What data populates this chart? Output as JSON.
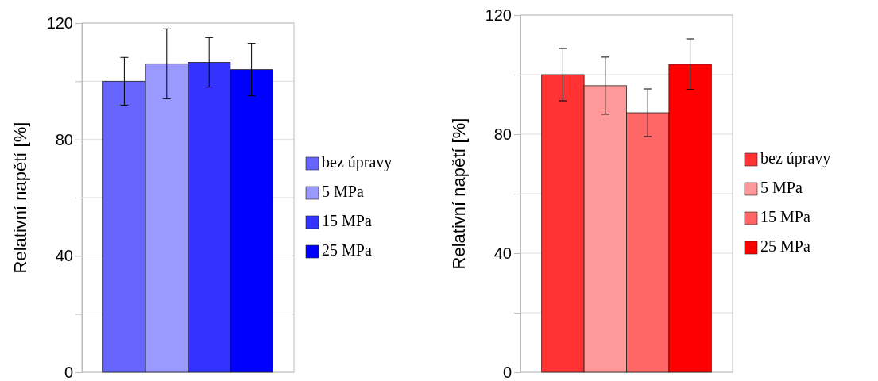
{
  "chart_data": [
    {
      "type": "bar",
      "ylabel": "Relativní napětí [%]",
      "categories": [
        null
      ],
      "ylim": [
        0,
        120
      ],
      "yticks": [
        0,
        {
          "value": 20,
          "label": null
        },
        40,
        {
          "value": 60,
          "label": null
        },
        80,
        {
          "value": 100,
          "label": null
        },
        120
      ],
      "grid": "y",
      "legend": "right",
      "series": [
        {
          "name": "bez úpravy",
          "color": "#6666ff",
          "values": [
            100
          ],
          "errors": [
            8.2
          ]
        },
        {
          "name": "5 MPa",
          "color": "#9999ff",
          "values": [
            106
          ],
          "errors": [
            12
          ]
        },
        {
          "name": "15 MPa",
          "color": "#3333ff",
          "values": [
            106.5
          ],
          "errors": [
            8.5
          ]
        },
        {
          "name": "25 MPa",
          "color": "#0000ff",
          "values": [
            104
          ],
          "errors": [
            9
          ]
        }
      ]
    },
    {
      "type": "bar",
      "ylabel": "Relativní napětí [%]",
      "categories": [
        null
      ],
      "ylim": [
        0,
        120
      ],
      "yticks": [
        0,
        {
          "value": 20,
          "label": null
        },
        40,
        {
          "value": 60,
          "label": null
        },
        80,
        {
          "value": 100,
          "label": null
        },
        120
      ],
      "grid": "y",
      "legend": "right",
      "series": [
        {
          "name": "bez úpravy",
          "color": "#ff3333",
          "values": [
            100
          ],
          "errors": [
            8.8
          ]
        },
        {
          "name": "5 MPa",
          "color": "#ff9999",
          "values": [
            96.3
          ],
          "errors": [
            9.6
          ]
        },
        {
          "name": "15 MPa",
          "color": "#ff6666",
          "values": [
            87.2
          ],
          "errors": [
            8
          ]
        },
        {
          "name": "25 MPa",
          "color": "#ff0000",
          "values": [
            103.5
          ],
          "errors": [
            8.5
          ]
        }
      ]
    }
  ]
}
